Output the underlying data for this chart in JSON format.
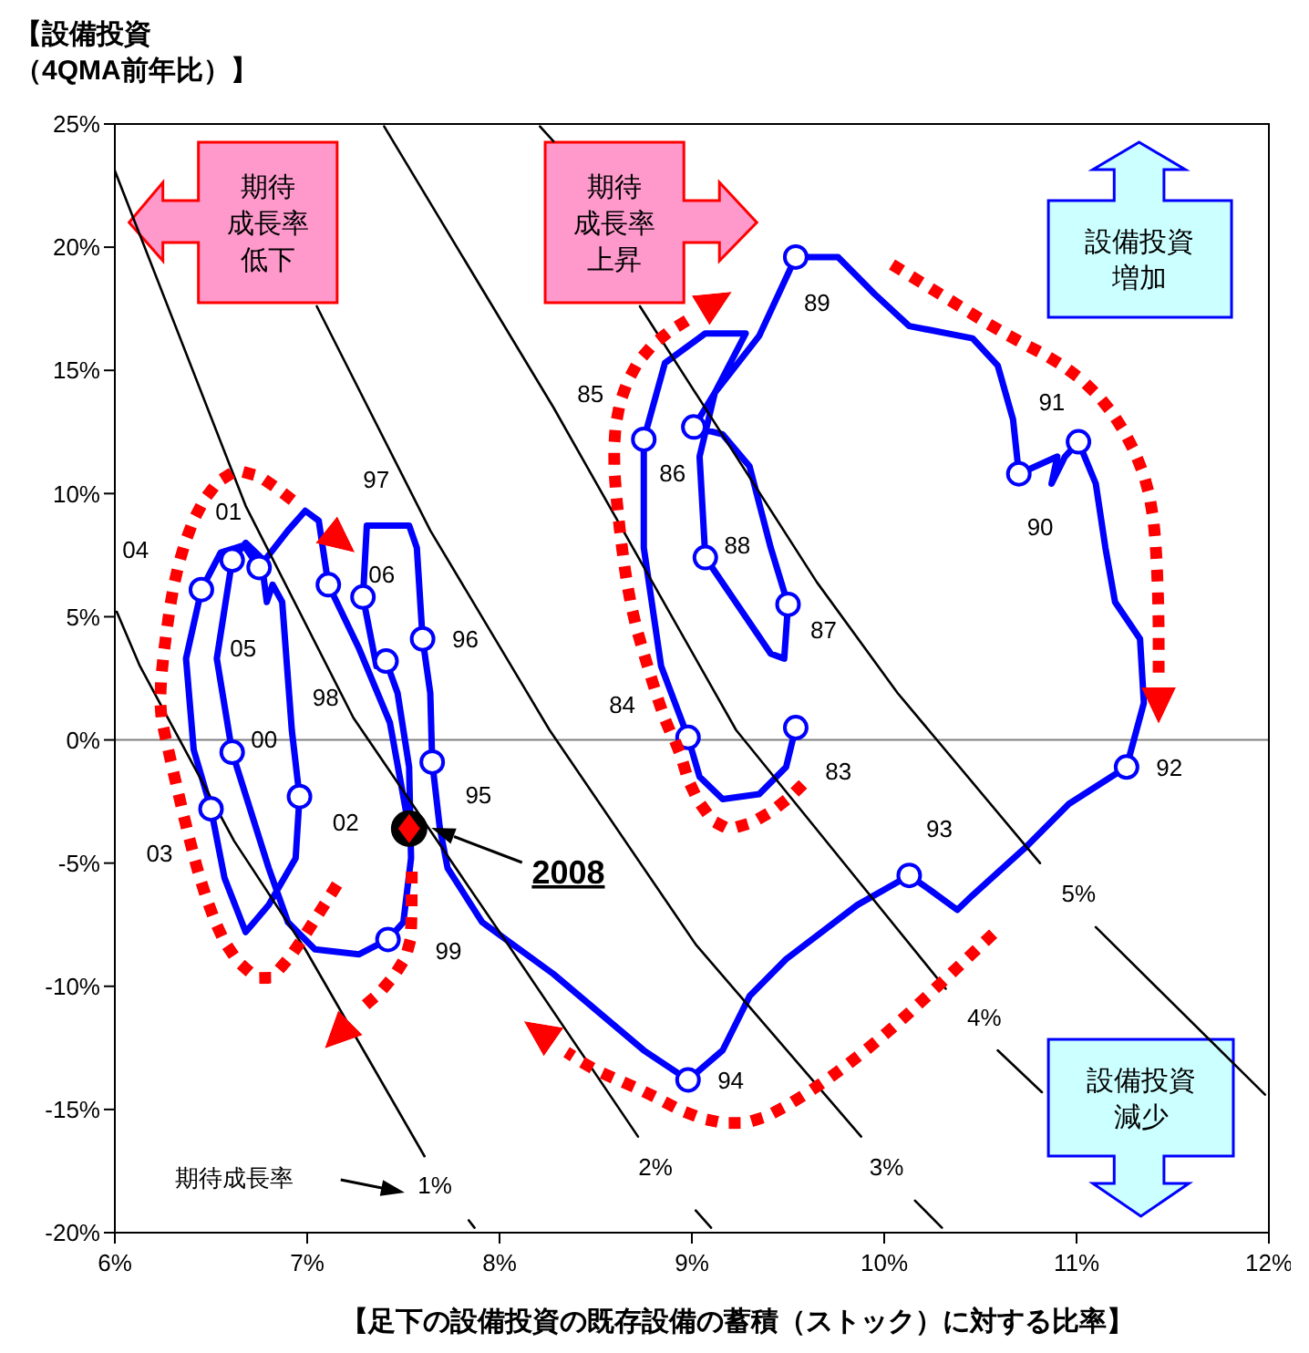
{
  "chart_data": {
    "type": "line",
    "ylabel": "【設備投資（4QMA前年比）】",
    "xlabel": "【足下の設備投資の既存設備の蓄積（ストック）に対する比率】",
    "xlim": [
      6,
      12
    ],
    "xticks": [
      {
        "value": 6,
        "label": "6%"
      },
      {
        "value": 7,
        "label": "7%"
      },
      {
        "value": 8,
        "label": "8%"
      },
      {
        "value": 9,
        "label": "9%"
      },
      {
        "value": 10,
        "label": "10%"
      },
      {
        "value": 11,
        "label": "11%"
      },
      {
        "value": 12,
        "label": "12%"
      }
    ],
    "ylim": [
      -20,
      25
    ],
    "yticks": [
      {
        "value": -20,
        "label": "-20%"
      },
      {
        "value": -15,
        "label": "-15%"
      },
      {
        "value": -10,
        "label": "-10%"
      },
      {
        "value": -5,
        "label": "-5%"
      },
      {
        "value": 0,
        "label": "0%"
      },
      {
        "value": 5,
        "label": "5%"
      },
      {
        "value": 10,
        "label": "10%"
      },
      {
        "value": 15,
        "label": "15%"
      },
      {
        "value": 20,
        "label": "20%"
      },
      {
        "value": 25,
        "label": "25%"
      }
    ],
    "ref_lines": [
      {
        "axis": "y",
        "value": 0,
        "color": "#808080"
      }
    ],
    "series": [
      {
        "color": "#0000ff",
        "marker": "none",
        "x": [
          9.54,
          9.49,
          9.35,
          9.16,
          9.04,
          8.98,
          8.84,
          8.75,
          8.75,
          8.86,
          9.07,
          9.28,
          9.12,
          9.01,
          9.16,
          9.3,
          9.41,
          9.5,
          9.48,
          9.41,
          9.07,
          9.04,
          9.12,
          9.35,
          9.54,
          9.76,
          9.95,
          10.13,
          10.46,
          10.59,
          10.67,
          10.7,
          10.9,
          10.87,
          10.94,
          11.01,
          11.1,
          11.15,
          11.2,
          11.33,
          11.35,
          11.26,
          10.96,
          10.73,
          10.46,
          10.38,
          10.24,
          10.13,
          9.86,
          9.49,
          9.3,
          9.16,
          8.98,
          8.75,
          8.28,
          7.91,
          7.73,
          7.69,
          7.65,
          7.64,
          7.6,
          7.57,
          7.53,
          7.31,
          7.29,
          7.36,
          7.41,
          7.47,
          7.53,
          7.54,
          7.5,
          7.42,
          7.27,
          7.04,
          6.9,
          6.8,
          6.61,
          6.53,
          6.61,
          6.68,
          6.76,
          6.79,
          6.82,
          6.87,
          6.92,
          6.96,
          6.94,
          6.8,
          6.68,
          6.57,
          6.5,
          6.41,
          6.37,
          6.45,
          6.55,
          6.67,
          6.75,
          6.9,
          6.99,
          7.06,
          7.11,
          7.27,
          7.43,
          7.53
        ],
        "values": [
          0.5,
          -1.1,
          -2.2,
          -2.4,
          -1.5,
          0.1,
          3.0,
          7.8,
          12.2,
          15.3,
          16.5,
          16.5,
          14.1,
          12.7,
          12.4,
          11.1,
          7.8,
          5.5,
          3.3,
          3.5,
          7.4,
          11.5,
          14.1,
          16.4,
          19.6,
          19.6,
          18.1,
          16.8,
          16.3,
          15.2,
          13.0,
          10.8,
          11.5,
          10.4,
          11.5,
          12.1,
          10.4,
          7.8,
          5.6,
          4.1,
          1.5,
          -1.1,
          -2.6,
          -4.4,
          -6.3,
          -6.9,
          -6.1,
          -5.5,
          -6.7,
          -8.9,
          -10.4,
          -12.6,
          -13.8,
          -12.6,
          -9.5,
          -7.4,
          -5.2,
          -3.6,
          -0.9,
          1.9,
          4.1,
          7.8,
          8.7,
          8.7,
          5.8,
          3.0,
          3.2,
          1.9,
          -1.1,
          -4.8,
          -7.4,
          -8.1,
          -8.7,
          -8.5,
          -7.4,
          -5.2,
          -0.5,
          3.3,
          7.3,
          8.0,
          7.4,
          5.6,
          6.3,
          5.6,
          0.4,
          -2.3,
          -4.8,
          -6.7,
          -7.8,
          -5.6,
          -2.8,
          -0.4,
          3.3,
          6.1,
          7.6,
          7.9,
          7.0,
          8.5,
          9.3,
          8.9,
          6.3,
          3.7,
          0.7,
          -3.6
        ]
      },
      {
        "type": "scatter",
        "color": "#0000ff",
        "marker": "circle",
        "x": [
          9.54,
          8.98,
          8.75,
          9.01,
          9.5,
          9.07,
          9.54,
          10.7,
          11.01,
          11.26,
          10.13,
          8.98,
          7.65,
          7.6,
          7.29,
          7.41,
          7.42,
          6.61,
          6.61,
          6.96,
          6.5,
          6.45,
          6.75,
          7.11
        ],
        "values": [
          0.5,
          0.1,
          12.2,
          12.7,
          5.5,
          7.4,
          19.6,
          10.8,
          12.1,
          -1.1,
          -5.5,
          -13.8,
          -0.9,
          4.1,
          5.8,
          3.2,
          -8.1,
          -0.5,
          7.3,
          -2.3,
          -2.8,
          6.1,
          7.0,
          6.3
        ]
      },
      {
        "type": "scatter",
        "color": "#000000",
        "marker": "circle",
        "x": [
          7.53
        ],
        "values": [
          -3.6
        ]
      },
      {
        "color": "#000000",
        "marker": "none",
        "x": [
          6.01,
          6.13,
          6.62,
          6.99,
          7.61,
          7.72,
          7.84,
          7.87
        ],
        "values": [
          5.2,
          3.0,
          -4.1,
          -8.5,
          -16.9,
          null,
          -19.5,
          -19.8
        ]
      },
      {
        "color": "#000000",
        "marker": "none",
        "x": [
          6.0,
          6.68,
          7.24,
          8.0,
          8.72,
          8.87,
          9.02,
          9.1
        ],
        "values": [
          23.1,
          9.5,
          0.9,
          -7.8,
          -16.1,
          null,
          -19.1,
          -19.8
        ]
      },
      {
        "color": "#000000",
        "marker": "none",
        "x": [
          7.05,
          7.64,
          8.26,
          9.02,
          9.88,
          10.0,
          10.16,
          10.3
        ],
        "values": [
          17.6,
          8.5,
          0.4,
          -8.3,
          -16.1,
          null,
          -18.7,
          -19.8
        ]
      },
      {
        "color": "#000000",
        "marker": "none",
        "x": [
          7.4,
          8.28,
          9.23,
          10.32,
          10.45,
          10.59,
          10.82
        ],
        "values": [
          24.9,
          13.5,
          0.4,
          -10.1,
          null,
          -12.6,
          -14.3
        ]
      },
      {
        "color": "#000000",
        "marker": "none",
        "x": [
          8.21,
          8.28,
          8.5,
          8.73,
          9.65,
          10.07,
          10.81,
          10.95,
          11.1,
          11.98
        ],
        "values": [
          24.9,
          24.3,
          null,
          17.6,
          6.4,
          1.9,
          -5.0,
          null,
          -7.6,
          -14.4
        ]
      }
    ],
    "annotations": [
      "期待成長率低下",
      "期待成長率上昇",
      "設備投資増加",
      "設備投資減少",
      "期待成長率",
      "97",
      "2008",
      "1%",
      "2%",
      "3%",
      "4%",
      "5%",
      {
        "text": "83",
        "x": 9.54,
        "y": 0.5
      },
      {
        "text": "84",
        "x": 8.98,
        "y": 0.1
      },
      {
        "text": "85",
        "x": 8.75,
        "y": 12.2
      },
      {
        "text": "86",
        "x": 9.01,
        "y": 12.7
      },
      {
        "text": "87",
        "x": 9.5,
        "y": 5.5
      },
      {
        "text": "88",
        "x": 9.07,
        "y": 7.4
      },
      {
        "text": "89",
        "x": 9.54,
        "y": 19.6
      },
      {
        "text": "90",
        "x": 10.7,
        "y": 10.8
      },
      {
        "text": "91",
        "x": 11.01,
        "y": 12.1
      },
      {
        "text": "92",
        "x": 11.26,
        "y": -1.1
      },
      {
        "text": "93",
        "x": 10.13,
        "y": -5.5
      },
      {
        "text": "94",
        "x": 8.98,
        "y": -13.8
      },
      {
        "text": "95",
        "x": 7.65,
        "y": -0.9
      },
      {
        "text": "96",
        "x": 7.6,
        "y": 4.1
      },
      {
        "text": "98",
        "x": 7.41,
        "y": 3.2
      },
      {
        "text": "99",
        "x": 7.42,
        "y": -8.1
      },
      {
        "text": "00",
        "x": 6.61,
        "y": -0.5
      },
      {
        "text": "01",
        "x": 6.61,
        "y": 7.3
      },
      {
        "text": "02",
        "x": 6.96,
        "y": -2.3
      },
      {
        "text": "03",
        "x": 6.5,
        "y": -2.8
      },
      {
        "text": "04",
        "x": 6.45,
        "y": 6.1
      },
      {
        "text": "05",
        "x": 6.75,
        "y": 7.0
      },
      {
        "text": "06",
        "x": 7.11,
        "y": 6.3
      }
    ]
  }
}
